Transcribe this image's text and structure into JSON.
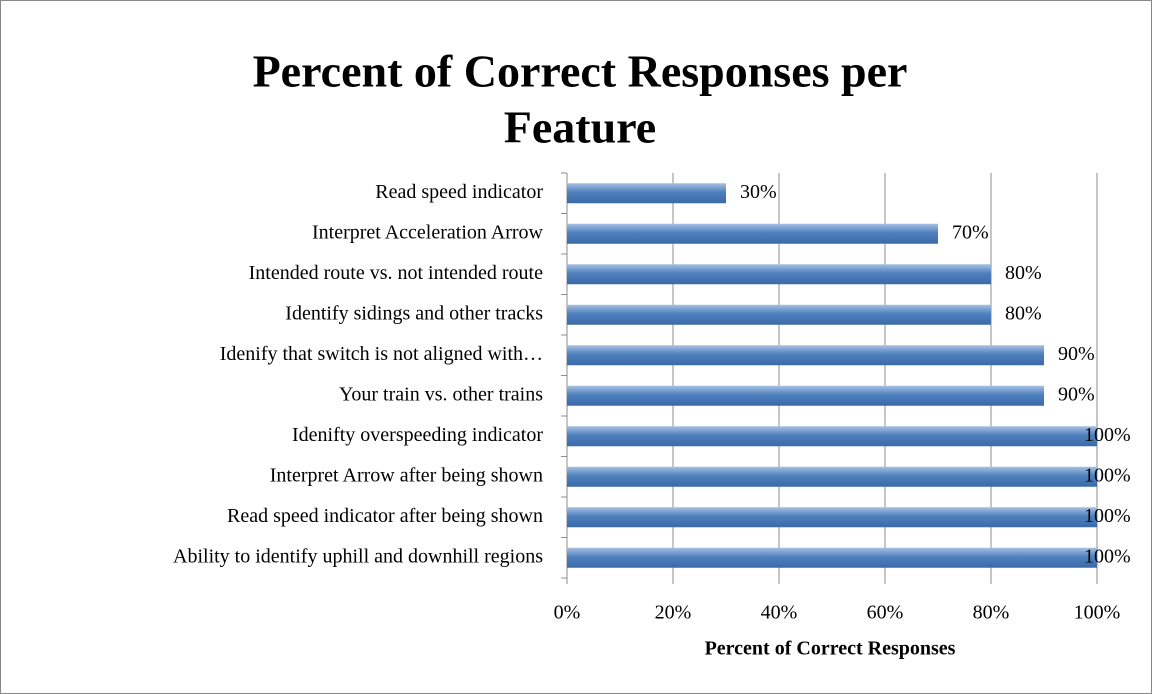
{
  "chart_data": {
    "type": "bar",
    "orientation": "horizontal",
    "title": [
      "Percent of Correct Responses per",
      "Feature"
    ],
    "x_label": "Percent of Correct Responses",
    "categories": [
      "Read speed indicator",
      "Interpret Acceleration Arrow",
      "Intended route vs. not intended route",
      "Identify sidings and other tracks",
      "Idenify that switch is not aligned with…",
      "Your train vs. other trains",
      "Idenifty overspeeding indicator",
      "Interpret Arrow after being shown",
      "Read speed indicator after being shown",
      "Ability to identify uphill and downhill regions"
    ],
    "values": [
      30,
      70,
      80,
      80,
      90,
      90,
      100,
      100,
      100,
      100
    ],
    "value_labels": [
      "30%",
      "70%",
      "80%",
      "80%",
      "90%",
      "90%",
      "100%",
      "100%",
      "100%",
      "100%"
    ],
    "color": "#4f81bd",
    "xlim": [
      0,
      100
    ],
    "xticks": [
      {
        "value": 0,
        "label": "0%"
      },
      {
        "value": 20,
        "label": "20%"
      },
      {
        "value": 40,
        "label": "40%"
      },
      {
        "value": 60,
        "label": "60%"
      },
      {
        "value": 80,
        "label": "80%"
      },
      {
        "value": 100,
        "label": "100%"
      }
    ],
    "grid": true
  }
}
